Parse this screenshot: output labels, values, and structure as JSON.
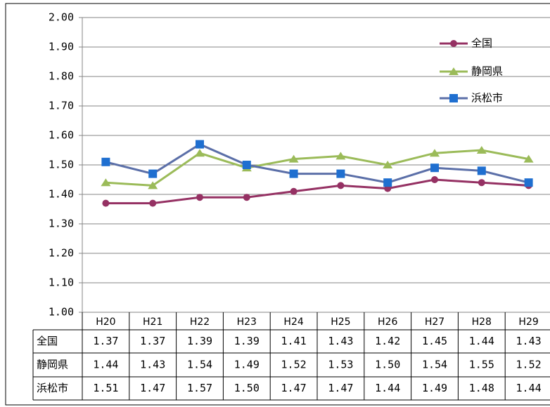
{
  "chart_data": {
    "type": "line",
    "categories": [
      "H20",
      "H21",
      "H22",
      "H23",
      "H24",
      "H25",
      "H26",
      "H27",
      "H28",
      "H29"
    ],
    "series": [
      {
        "name": "全国",
        "color": "#953163",
        "marker": "circle",
        "marker_color": "#953163",
        "values": [
          1.37,
          1.37,
          1.39,
          1.39,
          1.41,
          1.43,
          1.42,
          1.45,
          1.44,
          1.43
        ],
        "value_labels": [
          "1.37",
          "1.37",
          "1.39",
          "1.39",
          "1.41",
          "1.43",
          "1.42",
          "1.45",
          "1.44",
          "1.43"
        ]
      },
      {
        "name": "静岡県",
        "color": "#9bbb59",
        "marker": "triangle",
        "marker_color": "#9bbb59",
        "values": [
          1.44,
          1.43,
          1.54,
          1.49,
          1.52,
          1.53,
          1.5,
          1.54,
          1.55,
          1.52
        ],
        "value_labels": [
          "1.44",
          "1.43",
          "1.54",
          "1.49",
          "1.52",
          "1.53",
          "1.50",
          "1.54",
          "1.55",
          "1.52"
        ]
      },
      {
        "name": "浜松市",
        "color": "#5b6fa8",
        "marker": "square",
        "marker_color": "#1f6fd0",
        "values": [
          1.51,
          1.47,
          1.57,
          1.5,
          1.47,
          1.47,
          1.44,
          1.49,
          1.48,
          1.44
        ],
        "value_labels": [
          "1.51",
          "1.47",
          "1.57",
          "1.50",
          "1.47",
          "1.47",
          "1.44",
          "1.49",
          "1.48",
          "1.44"
        ]
      }
    ],
    "ylim": [
      1.0,
      2.0
    ],
    "yticks": [
      {
        "value": 1.0,
        "label": "1.00"
      },
      {
        "value": 1.1,
        "label": "1.10"
      },
      {
        "value": 1.2,
        "label": "1.20"
      },
      {
        "value": 1.3,
        "label": "1.30"
      },
      {
        "value": 1.4,
        "label": "1.40"
      },
      {
        "value": 1.5,
        "label": "1.50"
      },
      {
        "value": 1.6,
        "label": "1.60"
      },
      {
        "value": 1.7,
        "label": "1.70"
      },
      {
        "value": 1.8,
        "label": "1.80"
      },
      {
        "value": 1.9,
        "label": "1.90"
      },
      {
        "value": 2.0,
        "label": "2.00"
      }
    ],
    "grid": true,
    "legend": "upper right",
    "data_table": true
  }
}
